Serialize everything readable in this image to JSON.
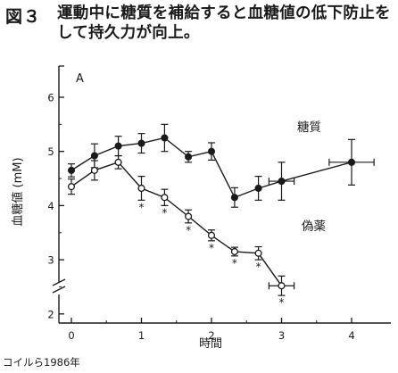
{
  "figure": {
    "label": "図３",
    "title": "運動中に糖質を補給すると血糖値の低下防止をして持久力が向上。",
    "credit": "コイルら1986年"
  },
  "chart_data": {
    "type": "line",
    "panel_label": "A",
    "xlabel": "時間",
    "ylabel": "血糖値 (mM)",
    "xlim": [
      0,
      4.3
    ],
    "ylim": [
      1.7,
      6.05
    ],
    "x_ticks": [
      0,
      1,
      2,
      3,
      4
    ],
    "y_ticks": [
      2,
      3,
      4,
      5,
      6
    ],
    "axis_break": true,
    "grid": false,
    "series": [
      {
        "name": "糖質",
        "marker": "filled-circle",
        "color": "#1a1a1a",
        "points": [
          {
            "x": 0.0,
            "y": 4.65,
            "yerr": 0.12
          },
          {
            "x": 0.33,
            "y": 4.92,
            "yerr": 0.22
          },
          {
            "x": 0.67,
            "y": 5.1,
            "yerr": 0.18
          },
          {
            "x": 1.0,
            "y": 5.15,
            "yerr": 0.18
          },
          {
            "x": 1.33,
            "y": 5.25,
            "yerr": 0.25
          },
          {
            "x": 1.67,
            "y": 4.9,
            "yerr": 0.1
          },
          {
            "x": 2.0,
            "y": 5.0,
            "yerr": 0.16
          },
          {
            "x": 2.33,
            "y": 4.15,
            "yerr": 0.18
          },
          {
            "x": 2.67,
            "y": 4.32,
            "yerr": 0.22
          },
          {
            "x": 3.0,
            "y": 4.45,
            "yerr": 0.35,
            "xerr": 0.18
          },
          {
            "x": 4.0,
            "y": 4.8,
            "yerr": 0.42,
            "xerr": 0.32
          }
        ]
      },
      {
        "name": "偽薬",
        "marker": "open-circle",
        "color": "#1a1a1a",
        "points": [
          {
            "x": 0.0,
            "y": 4.35,
            "yerr": 0.14
          },
          {
            "x": 0.33,
            "y": 4.65,
            "yerr": 0.18
          },
          {
            "x": 0.67,
            "y": 4.8,
            "yerr": 0.12
          },
          {
            "x": 1.0,
            "y": 4.32,
            "yerr": 0.22,
            "sig": true
          },
          {
            "x": 1.33,
            "y": 4.15,
            "yerr": 0.15,
            "sig": true
          },
          {
            "x": 1.67,
            "y": 3.8,
            "yerr": 0.12,
            "sig": true
          },
          {
            "x": 2.0,
            "y": 3.45,
            "yerr": 0.1,
            "sig": true
          },
          {
            "x": 2.33,
            "y": 3.15,
            "yerr": 0.08,
            "sig": true
          },
          {
            "x": 2.67,
            "y": 3.12,
            "yerr": 0.12,
            "sig": true
          },
          {
            "x": 3.0,
            "y": 2.52,
            "yerr": 0.18,
            "xerr": 0.18,
            "sig": true
          }
        ]
      }
    ],
    "significance_marker": "*"
  }
}
